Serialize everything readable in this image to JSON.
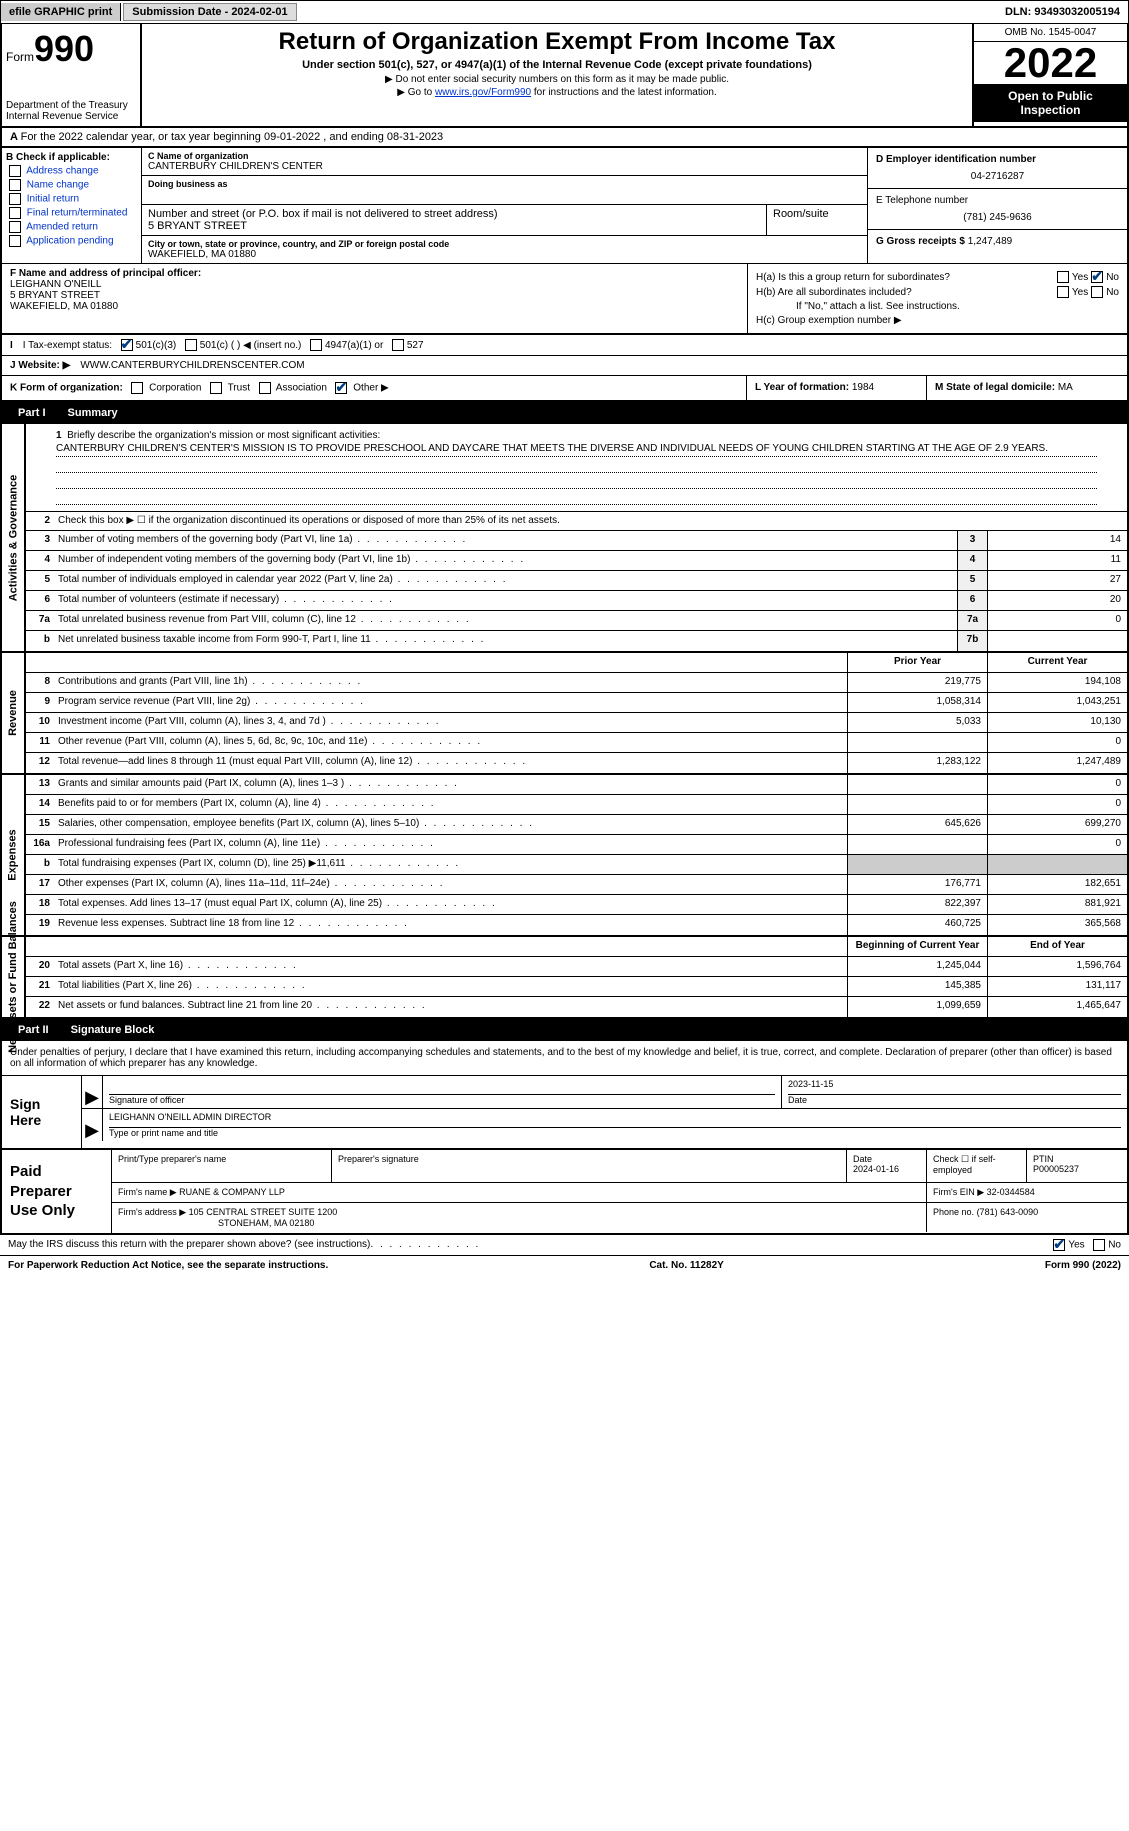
{
  "top": {
    "efile": "efile GRAPHIC print",
    "submission": "Submission Date - 2024-02-01",
    "dln": "DLN: 93493032005194"
  },
  "header": {
    "form_word": "Form",
    "form_num": "990",
    "dept": "Department of the Treasury Internal Revenue Service",
    "title": "Return of Organization Exempt From Income Tax",
    "subtitle": "Under section 501(c), 527, or 4947(a)(1) of the Internal Revenue Code (except private foundations)",
    "note1": "▶ Do not enter social security numbers on this form as it may be made public.",
    "note2_pre": "▶ Go to ",
    "note2_link": "www.irs.gov/Form990",
    "note2_post": " for instructions and the latest information.",
    "omb": "OMB No. 1545-0047",
    "year": "2022",
    "open": "Open to Public Inspection"
  },
  "section_a": "For the 2022 calendar year, or tax year beginning 09-01-2022   , and ending 08-31-2023",
  "block_b": {
    "label": "B Check if applicable:",
    "opts": [
      "Address change",
      "Name change",
      "Initial return",
      "Final return/terminated",
      "Amended return",
      "Application pending"
    ]
  },
  "block_c": {
    "name_label": "C Name of organization",
    "name": "CANTERBURY CHILDREN'S CENTER",
    "dba_label": "Doing business as",
    "street_label": "Number and street (or P.O. box if mail is not delivered to street address)",
    "room_label": "Room/suite",
    "street": "5 BRYANT STREET",
    "city_label": "City or town, state or province, country, and ZIP or foreign postal code",
    "city": "WAKEFIELD, MA  01880"
  },
  "block_d": {
    "ein_label": "D Employer identification number",
    "ein": "04-2716287",
    "tel_label": "E Telephone number",
    "tel": "(781) 245-9636",
    "gross_label": "G Gross receipts $",
    "gross": "1,247,489"
  },
  "block_f": {
    "label": "F  Name and address of principal officer:",
    "name": "LEIGHANN O'NEILL",
    "street": "5 BRYANT STREET",
    "city": "WAKEFIELD, MA  01880"
  },
  "block_h": {
    "ha": "H(a)  Is this a group return for subordinates?",
    "hb": "H(b)  Are all subordinates included?",
    "hb_note": "If \"No,\" attach a list. See instructions.",
    "hc": "H(c)  Group exemption number ▶"
  },
  "row_i": {
    "label": "I  Tax-exempt status:",
    "o1": "501(c)(3)",
    "o2": "501(c) (  ) ◀ (insert no.)",
    "o3": "4947(a)(1) or",
    "o4": "527"
  },
  "row_j": {
    "label": "J  Website: ▶",
    "url": "WWW.CANTERBURYCHILDRENSCENTER.COM"
  },
  "row_k": {
    "label": "K Form of organization:",
    "o1": "Corporation",
    "o2": "Trust",
    "o3": "Association",
    "o4": "Other ▶"
  },
  "row_l": {
    "label": "L Year of formation:",
    "val": "1984"
  },
  "row_m": {
    "label": "M State of legal domicile:",
    "val": "MA"
  },
  "part1": {
    "num": "Part I",
    "title": "Summary"
  },
  "part2": {
    "num": "Part II",
    "title": "Signature Block"
  },
  "vlabels": {
    "gov": "Activities & Governance",
    "rev": "Revenue",
    "exp": "Expenses",
    "net": "Net Assets or Fund Balances"
  },
  "mission": {
    "label": "Briefly describe the organization's mission or most significant activities:",
    "text": "CANTERBURY CHILDREN'S CENTER'S MISSION IS TO PROVIDE PRESCHOOL AND DAYCARE THAT MEETS THE DIVERSE AND INDIVIDUAL NEEDS OF YOUNG CHILDREN STARTING AT THE AGE OF 2.9 YEARS."
  },
  "line2": "Check this box ▶ ☐  if the organization discontinued its operations or disposed of more than 25% of its net assets.",
  "gov_lines": [
    {
      "n": "3",
      "t": "Number of voting members of the governing body (Part VI, line 1a)",
      "b": "3",
      "v": "14"
    },
    {
      "n": "4",
      "t": "Number of independent voting members of the governing body (Part VI, line 1b)",
      "b": "4",
      "v": "11"
    },
    {
      "n": "5",
      "t": "Total number of individuals employed in calendar year 2022 (Part V, line 2a)",
      "b": "5",
      "v": "27"
    },
    {
      "n": "6",
      "t": "Total number of volunteers (estimate if necessary)",
      "b": "6",
      "v": "20"
    },
    {
      "n": "7a",
      "t": "Total unrelated business revenue from Part VIII, column (C), line 12",
      "b": "7a",
      "v": "0"
    },
    {
      "n": "b",
      "t": "Net unrelated business taxable income from Form 990-T, Part I, line 11",
      "b": "7b",
      "v": ""
    }
  ],
  "col_headers": {
    "prior": "Prior Year",
    "current": "Current Year",
    "begin": "Beginning of Current Year",
    "end": "End of Year"
  },
  "rev_lines": [
    {
      "n": "8",
      "t": "Contributions and grants (Part VIII, line 1h)",
      "p": "219,775",
      "c": "194,108"
    },
    {
      "n": "9",
      "t": "Program service revenue (Part VIII, line 2g)",
      "p": "1,058,314",
      "c": "1,043,251"
    },
    {
      "n": "10",
      "t": "Investment income (Part VIII, column (A), lines 3, 4, and 7d )",
      "p": "5,033",
      "c": "10,130"
    },
    {
      "n": "11",
      "t": "Other revenue (Part VIII, column (A), lines 5, 6d, 8c, 9c, 10c, and 11e)",
      "p": "",
      "c": "0"
    },
    {
      "n": "12",
      "t": "Total revenue—add lines 8 through 11 (must equal Part VIII, column (A), line 12)",
      "p": "1,283,122",
      "c": "1,247,489"
    }
  ],
  "exp_lines": [
    {
      "n": "13",
      "t": "Grants and similar amounts paid (Part IX, column (A), lines 1–3 )",
      "p": "",
      "c": "0"
    },
    {
      "n": "14",
      "t": "Benefits paid to or for members (Part IX, column (A), line 4)",
      "p": "",
      "c": "0"
    },
    {
      "n": "15",
      "t": "Salaries, other compensation, employee benefits (Part IX, column (A), lines 5–10)",
      "p": "645,626",
      "c": "699,270"
    },
    {
      "n": "16a",
      "t": "Professional fundraising fees (Part IX, column (A), line 11e)",
      "p": "",
      "c": "0"
    },
    {
      "n": "b",
      "t": "Total fundraising expenses (Part IX, column (D), line 25) ▶11,611",
      "p": "SHADE",
      "c": "SHADE"
    },
    {
      "n": "17",
      "t": "Other expenses (Part IX, column (A), lines 11a–11d, 11f–24e)",
      "p": "176,771",
      "c": "182,651"
    },
    {
      "n": "18",
      "t": "Total expenses. Add lines 13–17 (must equal Part IX, column (A), line 25)",
      "p": "822,397",
      "c": "881,921"
    },
    {
      "n": "19",
      "t": "Revenue less expenses. Subtract line 18 from line 12",
      "p": "460,725",
      "c": "365,568"
    }
  ],
  "net_lines": [
    {
      "n": "20",
      "t": "Total assets (Part X, line 16)",
      "p": "1,245,044",
      "c": "1,596,764"
    },
    {
      "n": "21",
      "t": "Total liabilities (Part X, line 26)",
      "p": "145,385",
      "c": "131,117"
    },
    {
      "n": "22",
      "t": "Net assets or fund balances. Subtract line 21 from line 20",
      "p": "1,099,659",
      "c": "1,465,647"
    }
  ],
  "sig_intro": "Under penalties of perjury, I declare that I have examined this return, including accompanying schedules and statements, and to the best of my knowledge and belief, it is true, correct, and complete. Declaration of preparer (other than officer) is based on all information of which preparer has any knowledge.",
  "sign": {
    "label": "Sign Here",
    "sig_label": "Signature of officer",
    "date_label": "Date",
    "date": "2023-11-15",
    "name": "LEIGHANN O'NEILL  ADMIN DIRECTOR",
    "name_label": "Type or print name and title"
  },
  "prep": {
    "label": "Paid Preparer Use Only",
    "h1": "Print/Type preparer's name",
    "h2": "Preparer's signature",
    "h3": "Date",
    "date": "2024-01-16",
    "h4": "Check ☐ if self-employed",
    "h5": "PTIN",
    "ptin": "P00005237",
    "firm_label": "Firm's name    ▶",
    "firm": "RUANE & COMPANY LLP",
    "ein_label": "Firm's EIN ▶",
    "ein": "32-0344584",
    "addr_label": "Firm's address ▶",
    "addr1": "105 CENTRAL STREET SUITE 1200",
    "addr2": "STONEHAM, MA  02180",
    "phone_label": "Phone no.",
    "phone": "(781) 643-0090"
  },
  "footer": {
    "discuss": "May the IRS discuss this return with the preparer shown above? (see instructions)",
    "paperwork": "For Paperwork Reduction Act Notice, see the separate instructions.",
    "cat": "Cat. No. 11282Y",
    "formref": "Form 990 (2022)"
  }
}
